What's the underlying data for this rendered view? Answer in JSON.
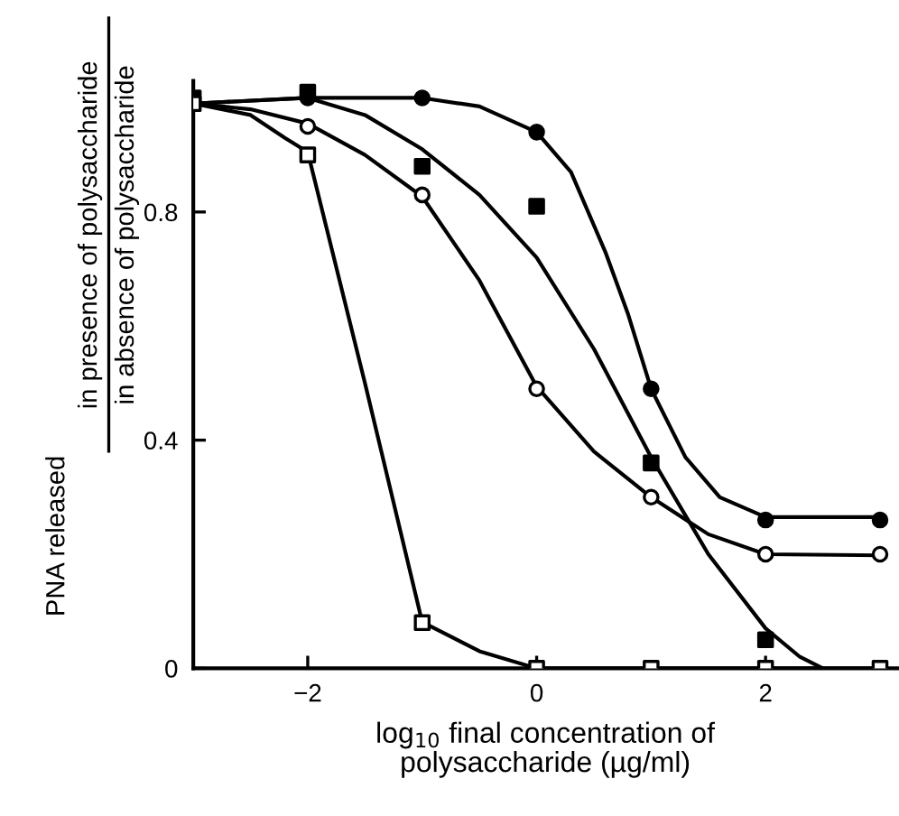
{
  "chart_data": {
    "type": "scatter",
    "xlabel": "log$_{10}$ final concentration of\npolysaccharide (µg/ml)",
    "ylabel": "PNA released",
    "annotations": [
      "in presence of polysaccharide",
      "in absence of polysaccharide"
    ],
    "series": [
      {
        "color": "#000000",
        "marker": "circle",
        "x": [
          -2,
          -1,
          0,
          1,
          2,
          3
        ],
        "values": [
          1.0,
          1.0,
          0.94,
          0.49,
          0.26,
          0.26
        ]
      },
      {
        "color": "#000000",
        "marker": "square",
        "x": [
          -3,
          -2,
          -1,
          0,
          1,
          2
        ],
        "values": [
          1.0,
          1.01,
          0.88,
          0.81,
          0.36,
          0.05
        ]
      },
      {
        "color": "#ffffff",
        "marker": "circle",
        "x": [
          -2,
          -1,
          0,
          1,
          2,
          3
        ],
        "values": [
          0.95,
          0.83,
          0.49,
          0.3,
          0.2,
          0.2
        ]
      },
      {
        "color": "#ffffff",
        "marker": "square",
        "x": [
          -3,
          -2,
          -1,
          0,
          1,
          2,
          3
        ],
        "values": [
          0.99,
          0.9,
          0.08,
          0,
          0,
          0,
          0
        ]
      },
      {
        "type": "line",
        "color": "#000000",
        "x": [
          -3,
          -2,
          -1,
          -0.5,
          0,
          0.3,
          0.6,
          0.8,
          1.0,
          1.3,
          1.6,
          2,
          3
        ],
        "values": [
          0.99,
          1.0,
          1.0,
          0.985,
          0.94,
          0.87,
          0.73,
          0.62,
          0.49,
          0.37,
          0.3,
          0.265,
          0.265
        ]
      },
      {
        "type": "line",
        "color": "#000000",
        "x": [
          -3,
          -2,
          -1.5,
          -1,
          -0.5,
          0,
          0.5,
          1.0,
          1.5,
          2,
          2.3,
          2.5
        ],
        "values": [
          0.99,
          1.0,
          0.97,
          0.91,
          0.83,
          0.72,
          0.56,
          0.37,
          0.2,
          0.07,
          0.02,
          0
        ]
      },
      {
        "type": "line",
        "color": "#000000",
        "x": [
          -3,
          -2.5,
          -2,
          -1.5,
          -1,
          -0.5,
          0,
          0.5,
          1,
          1.5,
          2,
          3
        ],
        "values": [
          0.99,
          0.98,
          0.955,
          0.9,
          0.827,
          0.68,
          0.494,
          0.38,
          0.3,
          0.235,
          0.2,
          0.198
        ]
      },
      {
        "type": "line",
        "color": "#000000",
        "x": [
          -3,
          -2.5,
          -2.2,
          -2,
          -1.5,
          -1,
          -0.5,
          0,
          3
        ],
        "values": [
          0.99,
          0.97,
          0.93,
          0.905,
          0.5,
          0.081,
          0.03,
          0,
          0
        ]
      }
    ],
    "xlim": [
      -3,
      3.15
    ],
    "ylim": [
      0,
      1.03
    ],
    "xticks": [
      {
        "value": -2,
        "label": "−2"
      },
      0,
      2
    ],
    "yticks": [
      0,
      0.4,
      0.8
    ],
    "grid": false,
    "legend": false
  }
}
